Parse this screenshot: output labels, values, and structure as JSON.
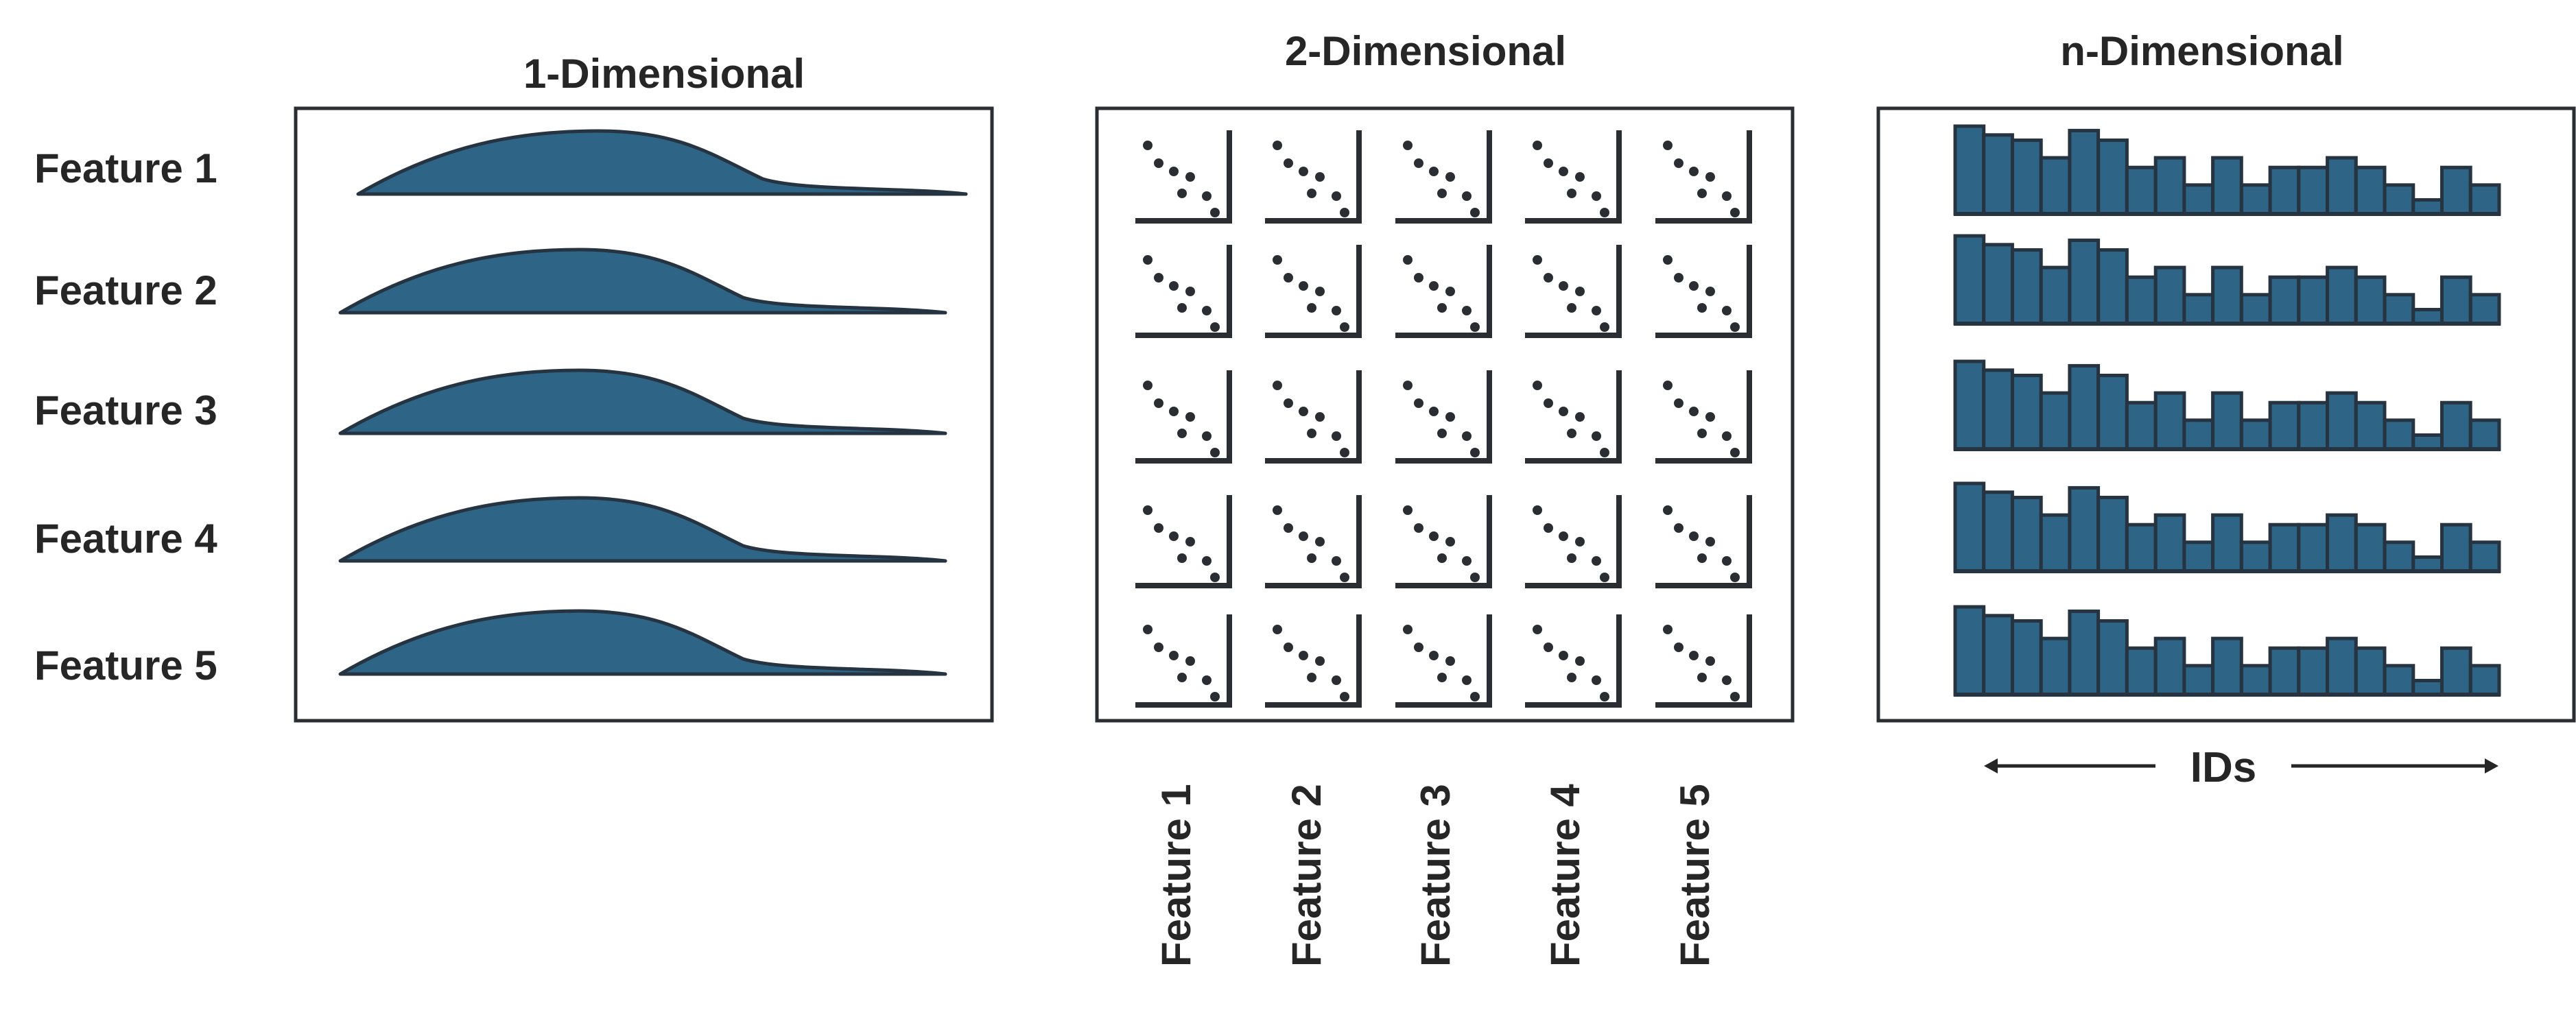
{
  "panels": {
    "one_d": {
      "title": "1-Dimensional"
    },
    "two_d": {
      "title": "2-Dimensional"
    },
    "n_d": {
      "title": "n-Dimensional",
      "axis_label": "IDs"
    }
  },
  "features": [
    "Feature 1",
    "Feature 2",
    "Feature 3",
    "Feature 4",
    "Feature 5"
  ],
  "style": {
    "fill": "#2e6586",
    "stroke": "#263340",
    "frame": "#2a2e33",
    "text": "#262626"
  },
  "bar_heights": [
    1.0,
    0.9,
    0.84,
    0.64,
    0.95,
    0.84,
    0.53,
    0.64,
    0.33,
    0.64,
    0.33,
    0.53,
    0.53,
    0.64,
    0.53,
    0.33,
    0.16,
    0.53,
    0.33
  ]
}
